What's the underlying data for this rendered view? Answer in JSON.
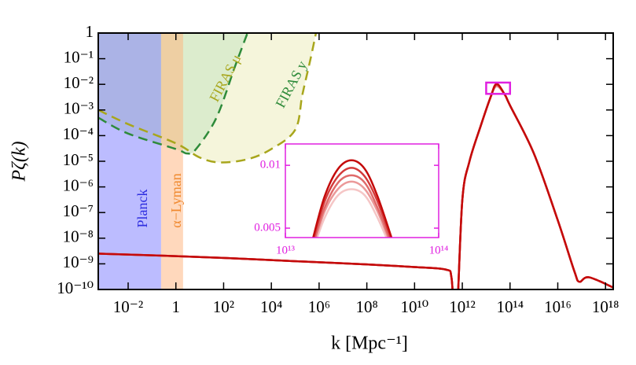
{
  "chart_data": [
    {
      "type": "line",
      "xlabel": "k [Mpc⁻¹]",
      "ylabel": "Pζ(k)",
      "xscale": "log",
      "yscale": "log",
      "xlim": [
        0.00056,
        2.1e+18
      ],
      "ylim": [
        1e-10,
        1
      ],
      "xticks": [
        {
          "value": 0.01,
          "label": "10⁻²"
        },
        1,
        {
          "value": 100,
          "label": "10²"
        },
        {
          "value": 10000.0,
          "label": "10⁴"
        },
        {
          "value": 1000000.0,
          "label": "10⁶"
        },
        {
          "value": 100000000.0,
          "label": "10⁸"
        },
        {
          "value": 10000000000.0,
          "label": "10¹⁰"
        },
        {
          "value": 1000000000000.0,
          "label": "10¹²"
        },
        {
          "value": 100000000000000.0,
          "label": "10¹⁴"
        },
        {
          "value": 1e+16,
          "label": "10¹⁶"
        },
        {
          "value": 1e+18,
          "label": "10¹⁸"
        }
      ],
      "yticks": [
        1,
        {
          "value": 0.1,
          "label": "10⁻¹"
        },
        {
          "value": 0.01,
          "label": "10⁻²"
        },
        {
          "value": 0.001,
          "label": "10⁻³"
        },
        {
          "value": 0.0001,
          "label": "10⁻⁴"
        },
        {
          "value": 1e-05,
          "label": "10⁻⁵"
        },
        {
          "value": 1e-06,
          "label": "10⁻⁶"
        },
        {
          "value": 1e-07,
          "label": "10⁻⁷"
        },
        {
          "value": 1e-08,
          "label": "10⁻⁸"
        },
        {
          "value": 1e-09,
          "label": "10⁻⁹"
        },
        {
          "value": 1e-10,
          "label": "10⁻¹⁰"
        }
      ],
      "bands": [
        {
          "name": "Planck",
          "color": "#7a7aff",
          "xrange": [
            0.00056,
            0.24
          ]
        },
        {
          "name": "α−Lyman",
          "color": "#ffb27a",
          "xrange": [
            0.24,
            2
          ]
        }
      ],
      "constraints": [
        {
          "name": "FIRAS μ",
          "color": "#a8a61c",
          "fill": "#f2f2cf",
          "x": [
            0.00056,
            0.01,
            1,
            10,
            70,
            1000,
            10000.0,
            100000.0,
            200000.0,
            440000.0,
            740000.0
          ],
          "values": [
            0.001,
            0.00028,
            5e-05,
            1.4e-05,
            9e-06,
            1.2e-05,
            3e-05,
            0.00017,
            0.004,
            0.1,
            1
          ]
        },
        {
          "name": "FIRAS y",
          "color": "#2e8b3a",
          "fill": "#d3e8c8",
          "x": [
            0.00056,
            0.01,
            1,
            3,
            7,
            50,
            300,
            1000
          ],
          "values": [
            0.0005,
            0.00012,
            3e-05,
            2e-05,
            3e-05,
            0.0005,
            0.05,
            1
          ]
        }
      ],
      "x": [
        0.00056,
        0.01,
        1,
        100,
        10000.0,
        1000000.0,
        100000000.0,
        10000000000.0,
        200000000000.0,
        350000000000.0,
        450000000000.0,
        600000000000.0,
        1000000000000.0,
        2000000000000.0,
        6000000000000.0,
        15000000000000.0,
        27000000000000.0,
        60000000000000.0,
        100000000000000.0,
        1000000000000000.0,
        1e+16,
        5e+16,
        8e+16,
        2e+17,
        2.1e+18
      ],
      "series": [
        {
          "color": "#c40a0a",
          "values": [
            2.5e-09,
            2.3e-09,
            2e-09,
            1.7e-09,
            1.4e-09,
            1.15e-09,
            9.5e-10,
            7.5e-10,
            6e-10,
            3e-10,
            1e-11,
            1e-11,
            3e-07,
            1e-05,
            0.00025,
            0.003,
            0.0104,
            0.004,
            0.0015,
            2e-05,
            5e-08,
            5e-10,
            2e-10,
            3e-10,
            1.2e-10
          ]
        },
        {
          "color": "#d43b3b",
          "values": [
            2.5e-09,
            2.3e-09,
            2e-09,
            1.7e-09,
            1.4e-09,
            1.15e-09,
            9.5e-10,
            7.5e-10,
            6e-10,
            3e-10,
            1e-11,
            1e-11,
            3e-07,
            1e-05,
            0.00025,
            0.003,
            0.0098,
            0.004,
            0.0015,
            2e-05,
            5e-08,
            5e-10,
            2e-10,
            3e-10,
            1.2e-10
          ]
        },
        {
          "color": "#e06a6a",
          "values": [
            2.5e-09,
            2.3e-09,
            2e-09,
            1.7e-09,
            1.4e-09,
            1.15e-09,
            9.5e-10,
            7.5e-10,
            6e-10,
            3e-10,
            1e-11,
            1e-11,
            3e-07,
            1e-05,
            0.00025,
            0.003,
            0.0092,
            0.004,
            0.0015,
            2e-05,
            5e-08,
            5e-10,
            2e-10,
            3e-10,
            1.2e-10
          ]
        },
        {
          "color": "#eb9999",
          "values": [
            2.5e-09,
            2.3e-09,
            2e-09,
            1.7e-09,
            1.4e-09,
            1.15e-09,
            9.5e-10,
            7.5e-10,
            6e-10,
            3e-10,
            1e-11,
            1e-11,
            3e-07,
            1e-05,
            0.00025,
            0.003,
            0.0087,
            0.004,
            0.0015,
            2e-05,
            5e-08,
            5e-10,
            2e-10,
            3e-10,
            1.2e-10
          ]
        },
        {
          "color": "#f5c6c6",
          "values": [
            2.5e-09,
            2.3e-09,
            2e-09,
            1.7e-09,
            1.4e-09,
            1.15e-09,
            9.5e-10,
            7.5e-10,
            6e-10,
            3e-10,
            1e-11,
            1e-11,
            3e-07,
            1e-05,
            0.00025,
            0.003,
            0.0081,
            0.004,
            0.0015,
            2e-05,
            5e-08,
            5e-10,
            2e-10,
            3e-10,
            1.2e-10
          ]
        }
      ]
    },
    {
      "type": "line",
      "xscale": "log",
      "axis_color": "#e020e0",
      "xlim": [
        10000000000000.0,
        100000000000000.0
      ],
      "ylim": [
        0.00425,
        0.0117
      ],
      "xticks": [
        {
          "value": 10000000000000.0,
          "label": "10¹³"
        },
        {
          "value": 100000000000000.0,
          "label": "10¹⁴"
        }
      ],
      "yticks": [
        0.005,
        0.01
      ],
      "x": [
        15000000000000.0,
        18000000000000.0,
        22000000000000.0,
        27000000000000.0,
        33000000000000.0,
        40000000000000.0,
        50000000000000.0
      ],
      "series": [
        {
          "color": "#c40a0a",
          "values": [
            0.004,
            0.0075,
            0.0097,
            0.0104,
            0.0097,
            0.0075,
            0.004
          ]
        },
        {
          "color": "#d43b3b",
          "values": [
            0.0038,
            0.0071,
            0.0091,
            0.0098,
            0.0091,
            0.0071,
            0.0038
          ]
        },
        {
          "color": "#e06a6a",
          "values": [
            0.0035,
            0.0066,
            0.0086,
            0.0092,
            0.0086,
            0.0066,
            0.0035
          ]
        },
        {
          "color": "#eb9999",
          "values": [
            0.0033,
            0.0063,
            0.0081,
            0.0087,
            0.0081,
            0.0063,
            0.0033
          ]
        },
        {
          "color": "#f5c6c6",
          "values": [
            0.0031,
            0.0058,
            0.0076,
            0.0081,
            0.0076,
            0.0058,
            0.0031
          ]
        }
      ]
    }
  ]
}
